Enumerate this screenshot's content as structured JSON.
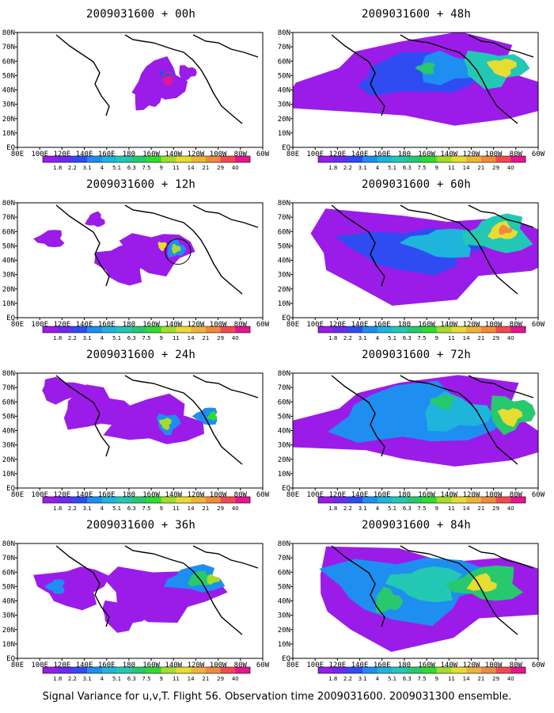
{
  "footer": "Signal Variance for u,v,T. Flight 56. Observation time 2009031600. 2009031300 ensemble.",
  "colorbar": {
    "labels": [
      "1.8",
      "2.2",
      "3.1",
      "4",
      "5.1",
      "6.3",
      "7.5",
      "9",
      "11",
      "14",
      "21",
      "29",
      "40"
    ],
    "colors": [
      "#9b1ce8",
      "#6a2cf0",
      "#2e4cf2",
      "#1e8ef0",
      "#1eb4dc",
      "#22c8b4",
      "#27c86e",
      "#2edc2e",
      "#a4dc2a",
      "#e6dc32",
      "#eeb43a",
      "#f08a3e",
      "#f04a50",
      "#e81490"
    ]
  },
  "x_ticks": [
    "80E",
    "100E",
    "120E",
    "140E",
    "160E",
    "180",
    "160W",
    "140W",
    "120W",
    "100W",
    "80W",
    "60W"
  ],
  "y_ticks": [
    "80N",
    "70N",
    "60N",
    "50N",
    "40N",
    "30N",
    "20N",
    "10N",
    "EQ"
  ],
  "panels": [
    {
      "title": "2009031600 + 00h"
    },
    {
      "title": "2009031600 + 12h"
    },
    {
      "title": "2009031600 + 24h"
    },
    {
      "title": "2009031600 + 36h"
    },
    {
      "title": "2009031600 + 48h"
    },
    {
      "title": "2009031600 + 60h"
    },
    {
      "title": "2009031600 + 72h"
    },
    {
      "title": "2009031600 + 84h"
    }
  ]
}
